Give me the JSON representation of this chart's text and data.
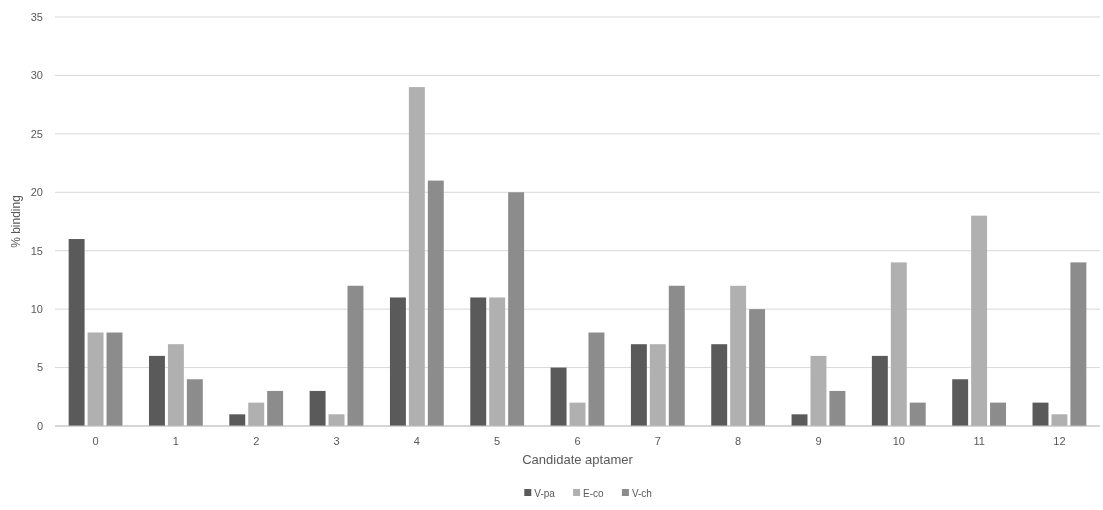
{
  "chart_data": {
    "type": "bar",
    "xlabel": "Candidate aptamer",
    "ylabel": "% binding",
    "categories": [
      "0",
      "1",
      "2",
      "3",
      "4",
      "5",
      "6",
      "7",
      "8",
      "9",
      "10",
      "11",
      "12"
    ],
    "series": [
      {
        "name": "V-pa",
        "color": "#5a5a5a",
        "values": [
          16,
          6,
          1,
          3,
          11,
          11,
          5,
          7,
          7,
          1,
          6,
          4,
          2
        ]
      },
      {
        "name": "E-co",
        "color": "#b0b0b0",
        "values": [
          8,
          7,
          2,
          1,
          29,
          11,
          2,
          7,
          12,
          6,
          14,
          18,
          1
        ]
      },
      {
        "name": "V-ch",
        "color": "#8c8c8c",
        "values": [
          8,
          4,
          3,
          12,
          21,
          20,
          8,
          12,
          10,
          3,
          2,
          2,
          14
        ]
      }
    ],
    "ylim": [
      0,
      35
    ],
    "yticks": [
      0,
      5,
      10,
      15,
      20,
      25,
      30,
      35
    ],
    "grid": "y",
    "legend": "bottom"
  }
}
